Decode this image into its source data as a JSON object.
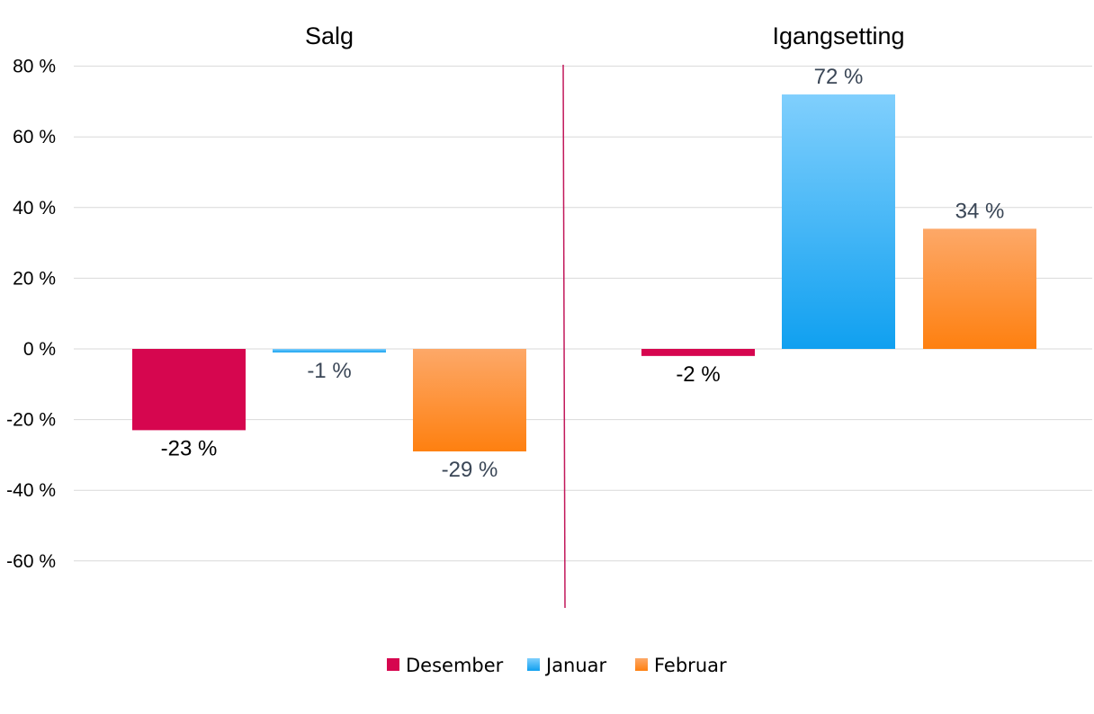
{
  "chart_data": {
    "type": "bar",
    "categories": [
      "Salg",
      "Igangsetting"
    ],
    "series": [
      {
        "name": "Desember",
        "values": [
          -23,
          -2
        ]
      },
      {
        "name": "Januar",
        "values": [
          -1,
          72
        ]
      },
      {
        "name": "Februar",
        "values": [
          -29,
          34
        ]
      }
    ],
    "data_labels": [
      [
        "-23 %",
        "-2 %"
      ],
      [
        "-1 %",
        "72 %"
      ],
      [
        "-29 %",
        "34 %"
      ]
    ],
    "yticks": [
      80,
      60,
      40,
      20,
      0,
      -20,
      -40,
      -60
    ],
    "ytick_labels": [
      "80 %",
      "60 %",
      "40 %",
      "20 %",
      "0 %",
      "-20 %",
      "-40 %",
      "-60 %"
    ],
    "ylim": [
      -73,
      80
    ],
    "grid": true,
    "legend_position": "bottom",
    "colors": {
      "Desember": "#d6064f",
      "Januar_top": "#80cffd",
      "Januar_bottom": "#10a0f0",
      "Februar_top": "#fda868",
      "Februar_bottom": "#fe8010",
      "grid": "#d9d9d9",
      "divider": "#c2185b",
      "label_dark": "#3a4656"
    }
  }
}
